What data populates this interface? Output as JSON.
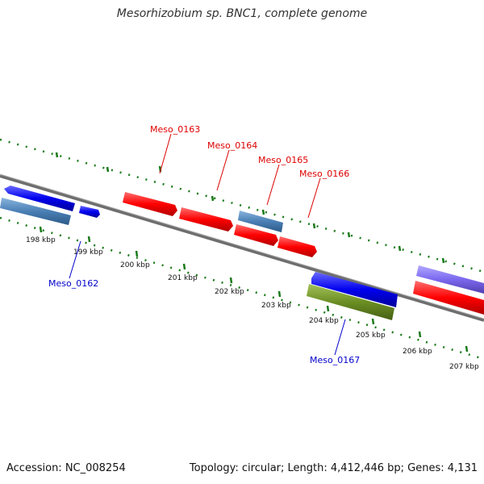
{
  "header": {
    "title": "Mesorhizobium sp. BNC1, complete genome"
  },
  "footer": {
    "accession": "Accession: NC_008254",
    "summary": "Topology: circular; Length: 4,412,446 bp; Genes: 4,131"
  },
  "axis": {
    "ticks": [
      "198 kbp",
      "199 kbp",
      "200 kbp",
      "201 kbp",
      "202 kbp",
      "203 kbp",
      "204 kbp",
      "205 kbp",
      "206 kbp",
      "207 kbp"
    ]
  },
  "genes": {
    "meso_0162": "Meso_0162",
    "meso_0163": "Meso_0163",
    "meso_0164": "Meso_0164",
    "meso_0165": "Meso_0165",
    "meso_0166": "Meso_0166",
    "meso_0167": "Meso_0167"
  },
  "colors": {
    "red_feature": "#ff0000",
    "blue_feature": "#0000ee",
    "steelblue_feature": "#4a7fb5",
    "olive_feature": "#6b8e23",
    "purple_feature": "#7b68ee",
    "backbone": "#808080",
    "tick_green": "#1a7a1a",
    "label_red": "#dd0000",
    "label_blue": "#0000cc"
  }
}
